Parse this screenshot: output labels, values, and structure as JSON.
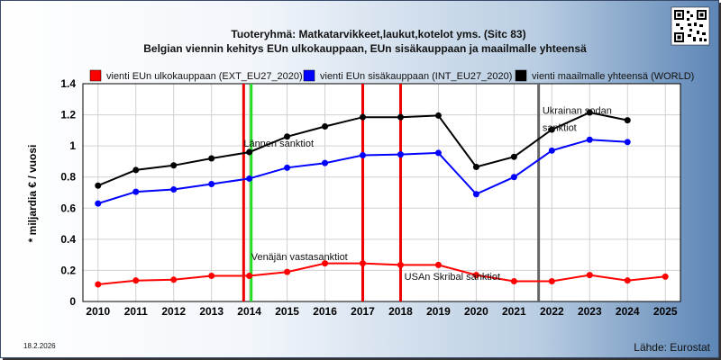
{
  "chart_data": {
    "type": "line",
    "title": "Tuoteryhmä: Matkatarvikkeet,laukut,kotelot yms. (Sitc 83)",
    "subtitle": "Belgian viennin kehitys EUn ulkokauppaan, EUn sisäkauppaan ja maailmalle yhteensä",
    "ylabel": "* miljardia € / vuosi",
    "xlabel": "",
    "ylim": [
      0,
      1.4
    ],
    "yticks": [
      0,
      0.2,
      0.4,
      0.6,
      0.8,
      1,
      1.2,
      1.4
    ],
    "xlim": [
      2009.6,
      2025.4
    ],
    "xticks": [
      2010,
      2011,
      2012,
      2013,
      2014,
      2015,
      2016,
      2017,
      2018,
      2019,
      2020,
      2021,
      2022,
      2023,
      2024,
      2025
    ],
    "grid": true,
    "legend_position": "top",
    "series": [
      {
        "name": "vienti EUn ulkokauppaan (EXT_EU27_2020)",
        "color": "#ff0000",
        "x": [
          2010,
          2011,
          2012,
          2013,
          2014,
          2015,
          2016,
          2017,
          2018,
          2019,
          2020,
          2021,
          2022,
          2023,
          2024,
          2025
        ],
        "values": [
          0.11,
          0.135,
          0.14,
          0.165,
          0.165,
          0.19,
          0.245,
          0.245,
          0.235,
          0.235,
          0.17,
          0.13,
          0.13,
          0.17,
          0.135,
          0.16
        ]
      },
      {
        "name": "vienti EUn sisäkauppaan (INT_EU27_2020)",
        "color": "#0000ff",
        "x": [
          2010,
          2011,
          2012,
          2013,
          2014,
          2015,
          2016,
          2017,
          2018,
          2019,
          2020,
          2021,
          2022,
          2023,
          2024
        ],
        "values": [
          0.63,
          0.705,
          0.72,
          0.755,
          0.79,
          0.86,
          0.89,
          0.94,
          0.945,
          0.955,
          0.69,
          0.8,
          0.97,
          1.04,
          1.025
        ]
      },
      {
        "name": "vienti maailmalle yhteensä (WORLD)",
        "color": "#000000",
        "x": [
          2010,
          2011,
          2012,
          2013,
          2014,
          2015,
          2016,
          2017,
          2018,
          2019,
          2020,
          2021,
          2022,
          2023,
          2024
        ],
        "values": [
          0.745,
          0.845,
          0.875,
          0.92,
          0.96,
          1.06,
          1.125,
          1.185,
          1.185,
          1.195,
          0.865,
          0.93,
          1.105,
          1.215,
          1.165
        ]
      }
    ],
    "event_lines": [
      {
        "x": 2013.85,
        "color": "#ee0000"
      },
      {
        "x": 2014.05,
        "color": "#22dd22"
      },
      {
        "x": 2017.0,
        "color": "#ee0000"
      },
      {
        "x": 2018.0,
        "color": "#ee0000"
      },
      {
        "x": 2021.65,
        "color": "#666666"
      }
    ],
    "annotations": [
      {
        "text": "Lännen sanktiot",
        "x": 2013.85,
        "y": 0.995
      },
      {
        "text": "Venäjän vastasanktiot",
        "x": 2014.05,
        "y": 0.265
      },
      {
        "text": "USAn Skribal sanktiot",
        "x": 2018.1,
        "y": 0.14
      },
      {
        "text": "Ukrainan sodan",
        "x": 2021.75,
        "y": 1.205
      },
      {
        "text": "sanktiot",
        "x": 2021.75,
        "y": 1.095
      }
    ],
    "date": "18.2.2026",
    "source": "Lähde: Eurostat"
  }
}
